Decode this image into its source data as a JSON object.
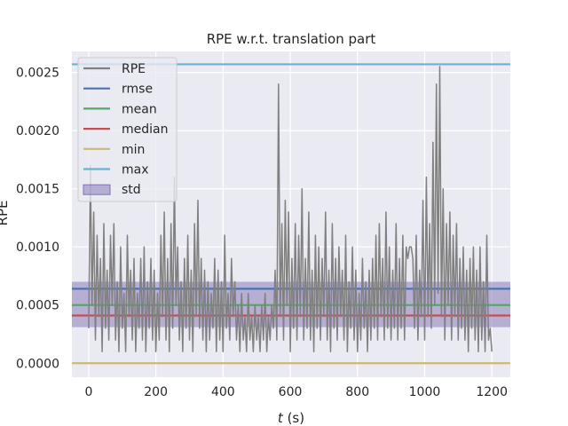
{
  "chart_data": {
    "type": "line",
    "title": "RPE w.r.t. translation part",
    "xlabel_italic": "t",
    "xlabel_unit": " (s)",
    "ylabel": "RPE",
    "xlim": [
      -50,
      1255
    ],
    "ylim": [
      -0.00012,
      0.00268
    ],
    "x_ticks": [
      0,
      200,
      400,
      600,
      800,
      1000,
      1200
    ],
    "y_ticks": [
      0.0,
      0.0005,
      0.001,
      0.0015,
      0.002,
      0.0025
    ],
    "y_tick_labels": [
      "0.0000",
      "0.0005",
      "0.0010",
      "0.0015",
      "0.0020",
      "0.0025"
    ],
    "grid": true,
    "legend_position": "top-left",
    "stats": {
      "rmse": 0.00064,
      "mean": 0.0005,
      "median": 0.00041,
      "min": 0.0,
      "max": 0.00257,
      "std_band": [
        0.00031,
        0.0007
      ]
    },
    "legend": [
      {
        "label": "RPE",
        "kind": "line",
        "color": "#808080"
      },
      {
        "label": "rmse",
        "kind": "line",
        "color": "#4c72b0"
      },
      {
        "label": "mean",
        "kind": "line",
        "color": "#55a868"
      },
      {
        "label": "median",
        "kind": "line",
        "color": "#c44e52"
      },
      {
        "label": "min",
        "kind": "line",
        "color": "#ccb974"
      },
      {
        "label": "max",
        "kind": "line",
        "color": "#64b5cd"
      },
      {
        "label": "std",
        "kind": "patch",
        "color": "#8172b3"
      }
    ],
    "series": [
      {
        "name": "RPE",
        "color": "#808080",
        "points": [
          [
            0,
            0.0003
          ],
          [
            5,
            0.0017
          ],
          [
            10,
            0.0005
          ],
          [
            15,
            0.0013
          ],
          [
            20,
            0.0002
          ],
          [
            25,
            0.0011
          ],
          [
            30,
            0.0004
          ],
          [
            35,
            0.0009
          ],
          [
            40,
            0.0001
          ],
          [
            45,
            0.0012
          ],
          [
            50,
            0.0003
          ],
          [
            55,
            0.0008
          ],
          [
            60,
            0.0002
          ],
          [
            65,
            0.0011
          ],
          [
            70,
            0.0005
          ],
          [
            75,
            0.0012
          ],
          [
            80,
            0.0002
          ],
          [
            85,
            0.0007
          ],
          [
            90,
            0.0001
          ],
          [
            95,
            0.001
          ],
          [
            100,
            0.0003
          ],
          [
            105,
            0.0006
          ],
          [
            110,
            0.0001
          ],
          [
            115,
            0.0011
          ],
          [
            120,
            0.0004
          ],
          [
            125,
            0.0008
          ],
          [
            130,
            0.0002
          ],
          [
            135,
            0.0009
          ],
          [
            140,
            0.0001
          ],
          [
            145,
            0.0006
          ],
          [
            150,
            0.0003
          ],
          [
            155,
            0.0009
          ],
          [
            160,
            0.0002
          ],
          [
            165,
            0.001
          ],
          [
            170,
            0.0001
          ],
          [
            175,
            0.0007
          ],
          [
            180,
            0.0003
          ],
          [
            185,
            0.0009
          ],
          [
            190,
            0.0002
          ],
          [
            195,
            0.0008
          ],
          [
            200,
            0.0001
          ],
          [
            205,
            0.0006
          ],
          [
            210,
            0.0002
          ],
          [
            215,
            0.0011
          ],
          [
            220,
            0.0004
          ],
          [
            225,
            0.0013
          ],
          [
            230,
            0.0002
          ],
          [
            235,
            0.0009
          ],
          [
            240,
            0.0001
          ],
          [
            245,
            0.0012
          ],
          [
            250,
            0.0003
          ],
          [
            255,
            0.0016
          ],
          [
            260,
            0.0005
          ],
          [
            265,
            0.001
          ],
          [
            270,
            0.0002
          ],
          [
            275,
            0.0007
          ],
          [
            280,
            0.0001
          ],
          [
            285,
            0.0009
          ],
          [
            290,
            0.0003
          ],
          [
            295,
            0.0011
          ],
          [
            300,
            0.0002
          ],
          [
            305,
            0.0008
          ],
          [
            310,
            0.0001
          ],
          [
            315,
            0.0012
          ],
          [
            320,
            0.0004
          ],
          [
            325,
            0.0014
          ],
          [
            330,
            0.0003
          ],
          [
            335,
            0.0009
          ],
          [
            340,
            0.0002
          ],
          [
            345,
            0.0008
          ],
          [
            350,
            0.0001
          ],
          [
            355,
            0.0007
          ],
          [
            360,
            0.0002
          ],
          [
            365,
            0.0006
          ],
          [
            370,
            0.0003
          ],
          [
            375,
            0.0009
          ],
          [
            380,
            0.0001
          ],
          [
            385,
            0.0008
          ],
          [
            390,
            0.0002
          ],
          [
            395,
            0.0007
          ],
          [
            400,
            0.0001
          ],
          [
            405,
            0.0011
          ],
          [
            410,
            0.0003
          ],
          [
            415,
            0.0006
          ],
          [
            420,
            0.0002
          ],
          [
            425,
            0.0009
          ],
          [
            430,
            0.0004
          ],
          [
            435,
            0.0007
          ],
          [
            440,
            0.0002
          ],
          [
            445,
            0.0005
          ],
          [
            450,
            0.0001
          ],
          [
            455,
            0.0006
          ],
          [
            460,
            0.0002
          ],
          [
            465,
            0.0004
          ],
          [
            470,
            0.0001
          ],
          [
            475,
            0.0006
          ],
          [
            480,
            0.0002
          ],
          [
            485,
            0.0004
          ],
          [
            490,
            0.0001
          ],
          [
            495,
            0.0005
          ],
          [
            500,
            0.0002
          ],
          [
            505,
            0.0004
          ],
          [
            510,
            0.0001
          ],
          [
            515,
            0.0005
          ],
          [
            520,
            0.0002
          ],
          [
            525,
            0.0006
          ],
          [
            530,
            0.0001
          ],
          [
            535,
            0.0004
          ],
          [
            540,
            0.0002
          ],
          [
            545,
            0.0005
          ],
          [
            550,
            0.0003
          ],
          [
            555,
            0.0008
          ],
          [
            560,
            0.0002
          ],
          [
            565,
            0.0024
          ],
          [
            570,
            0.0004
          ],
          [
            575,
            0.0012
          ],
          [
            580,
            0.0002
          ],
          [
            585,
            0.0014
          ],
          [
            590,
            0.0005
          ],
          [
            595,
            0.0013
          ],
          [
            600,
            0.0001
          ],
          [
            605,
            0.0009
          ],
          [
            610,
            0.0003
          ],
          [
            615,
            0.0012
          ],
          [
            620,
            0.0002
          ],
          [
            625,
            0.0011
          ],
          [
            630,
            0.0004
          ],
          [
            635,
            0.0015
          ],
          [
            640,
            0.0002
          ],
          [
            645,
            0.0009
          ],
          [
            650,
            0.0003
          ],
          [
            655,
            0.0013
          ],
          [
            660,
            0.0002
          ],
          [
            665,
            0.0008
          ],
          [
            670,
            0.0001
          ],
          [
            675,
            0.0011
          ],
          [
            680,
            0.0003
          ],
          [
            685,
            0.001
          ],
          [
            690,
            0.0002
          ],
          [
            695,
            0.0009
          ],
          [
            700,
            0.0004
          ],
          [
            705,
            0.0013
          ],
          [
            710,
            0.0002
          ],
          [
            715,
            0.0008
          ],
          [
            720,
            0.0001
          ],
          [
            725,
            0.0012
          ],
          [
            730,
            0.0003
          ],
          [
            735,
            0.0009
          ],
          [
            740,
            0.0002
          ],
          [
            745,
            0.001
          ],
          [
            750,
            0.0004
          ],
          [
            755,
            0.0008
          ],
          [
            760,
            0.0002
          ],
          [
            765,
            0.0011
          ],
          [
            770,
            0.0001
          ],
          [
            775,
            0.0007
          ],
          [
            780,
            0.0003
          ],
          [
            785,
            0.001
          ],
          [
            790,
            0.0002
          ],
          [
            795,
            0.0008
          ],
          [
            800,
            0.0001
          ],
          [
            805,
            0.0006
          ],
          [
            810,
            0.0002
          ],
          [
            815,
            0.0009
          ],
          [
            820,
            0.0003
          ],
          [
            825,
            0.0007
          ],
          [
            830,
            0.0001
          ],
          [
            835,
            0.0008
          ],
          [
            840,
            0.0002
          ],
          [
            845,
            0.0009
          ],
          [
            850,
            0.0003
          ],
          [
            855,
            0.0011
          ],
          [
            860,
            0.0002
          ],
          [
            865,
            0.0012
          ],
          [
            870,
            0.0004
          ],
          [
            875,
            0.0009
          ],
          [
            880,
            0.0002
          ],
          [
            885,
            0.0013
          ],
          [
            890,
            0.0003
          ],
          [
            895,
            0.001
          ],
          [
            900,
            0.0002
          ],
          [
            905,
            0.0008
          ],
          [
            910,
            0.0003
          ],
          [
            915,
            0.0012
          ],
          [
            920,
            0.0002
          ],
          [
            925,
            0.0009
          ],
          [
            930,
            0.0003
          ],
          [
            935,
            0.0011
          ],
          [
            940,
            0.0002
          ],
          [
            945,
            0.001
          ],
          [
            950,
            0.0009
          ],
          [
            955,
            0.001
          ],
          [
            960,
            0.001
          ],
          [
            965,
            0.0009
          ],
          [
            970,
            0.0003
          ],
          [
            975,
            0.0011
          ],
          [
            980,
            0.0002
          ],
          [
            985,
            0.0008
          ],
          [
            990,
            0.0004
          ],
          [
            995,
            0.0014
          ],
          [
            1000,
            0.0002
          ],
          [
            1005,
            0.0016
          ],
          [
            1010,
            0.0004
          ],
          [
            1015,
            0.0012
          ],
          [
            1020,
            0.0003
          ],
          [
            1025,
            0.0019
          ],
          [
            1030,
            0.0005
          ],
          [
            1035,
            0.0024
          ],
          [
            1040,
            0.0006
          ],
          [
            1045,
            0.00255
          ],
          [
            1050,
            0.0004
          ],
          [
            1055,
            0.0015
          ],
          [
            1060,
            0.0002
          ],
          [
            1065,
            0.0012
          ],
          [
            1070,
            0.0005
          ],
          [
            1075,
            0.0013
          ],
          [
            1080,
            0.0002
          ],
          [
            1085,
            0.0011
          ],
          [
            1090,
            0.0004
          ],
          [
            1095,
            0.0012
          ],
          [
            1100,
            0.0002
          ],
          [
            1105,
            0.0009
          ],
          [
            1110,
            0.0003
          ],
          [
            1115,
            0.001
          ],
          [
            1120,
            0.0002
          ],
          [
            1125,
            0.0008
          ],
          [
            1130,
            0.0001
          ],
          [
            1135,
            0.0009
          ],
          [
            1140,
            0.0003
          ],
          [
            1145,
            0.001
          ],
          [
            1150,
            0.0002
          ],
          [
            1155,
            0.0008
          ],
          [
            1160,
            0.0001
          ],
          [
            1165,
            0.001
          ],
          [
            1170,
            0.0002
          ],
          [
            1175,
            0.0007
          ],
          [
            1180,
            0.0001
          ],
          [
            1185,
            0.0011
          ],
          [
            1190,
            0.0002
          ],
          [
            1195,
            0.0003
          ],
          [
            1200,
            0.0001
          ]
        ]
      }
    ]
  }
}
